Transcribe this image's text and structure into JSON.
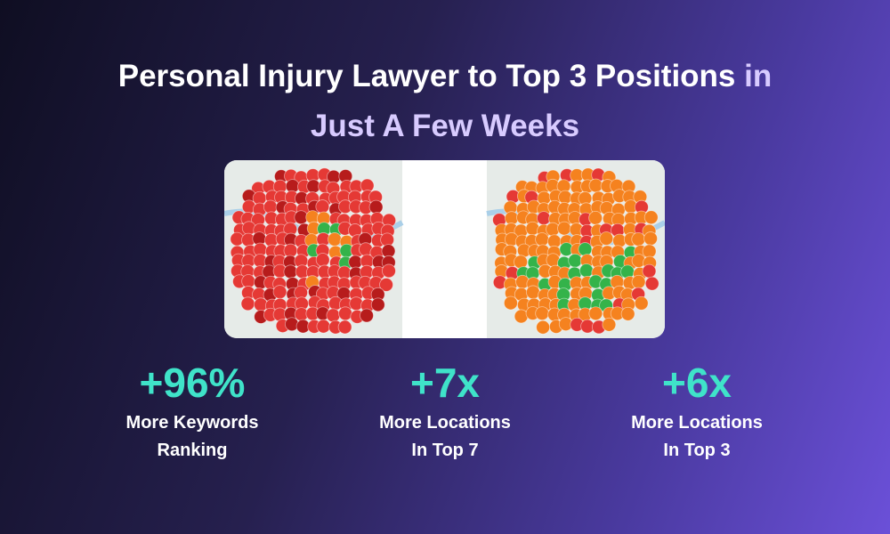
{
  "title": {
    "text": "Personal Injury Lawyer to Top 3 Positions",
    "highlight": [
      "in",
      "Just A Few Weeks"
    ]
  },
  "stats": [
    {
      "value": "+96%",
      "label": [
        "More Keywords",
        "Ranking"
      ]
    },
    {
      "value": "+7x",
      "label": [
        "More Locations",
        "In Top 7"
      ]
    },
    {
      "value": "+6x",
      "label": [
        "More Locations",
        "In Top 3"
      ]
    }
  ]
}
